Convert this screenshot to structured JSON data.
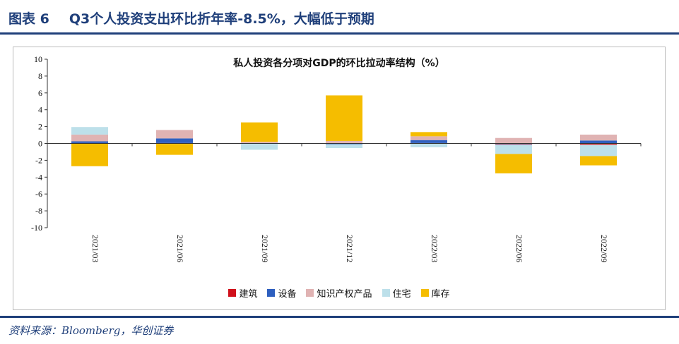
{
  "header": {
    "figure_label": "图表 6",
    "title": "Q3个人投资支出环比折年率-8.5%，大幅低于预期"
  },
  "source": "资料来源：Bloomberg，华创证券",
  "chart_data": {
    "type": "bar",
    "stacked": true,
    "title": "私人投资各分项对GDP的环比拉动率结构（%）",
    "categories": [
      "2021/03",
      "2021/06",
      "2021/09",
      "2021/12",
      "2022/03",
      "2022/06",
      "2022/09"
    ],
    "ylim": [
      -10,
      10
    ],
    "yticks": [
      10,
      8,
      6,
      4,
      2,
      0,
      -2,
      -4,
      -6,
      -8,
      -10
    ],
    "legend_position": "bottom",
    "series": [
      {
        "name": "建筑",
        "color": "#d0111b",
        "values": [
          0.05,
          0.05,
          -0.05,
          0.0,
          0.05,
          -0.1,
          -0.15
        ]
      },
      {
        "name": "设备",
        "color": "#2e5fbf",
        "values": [
          0.2,
          0.55,
          0.0,
          -0.1,
          0.35,
          -0.05,
          0.35
        ]
      },
      {
        "name": "知识产权产品",
        "color": "#e0b3b3",
        "values": [
          0.8,
          1.0,
          0.2,
          0.3,
          0.45,
          0.65,
          0.7
        ]
      },
      {
        "name": "住宅",
        "color": "#bde0ea",
        "values": [
          0.9,
          -0.05,
          -0.7,
          -0.45,
          -0.45,
          -1.1,
          -1.35
        ]
      },
      {
        "name": "库存",
        "color": "#f5bd00",
        "values": [
          -2.7,
          -1.3,
          2.3,
          5.4,
          0.5,
          -2.3,
          -1.1
        ]
      }
    ]
  }
}
